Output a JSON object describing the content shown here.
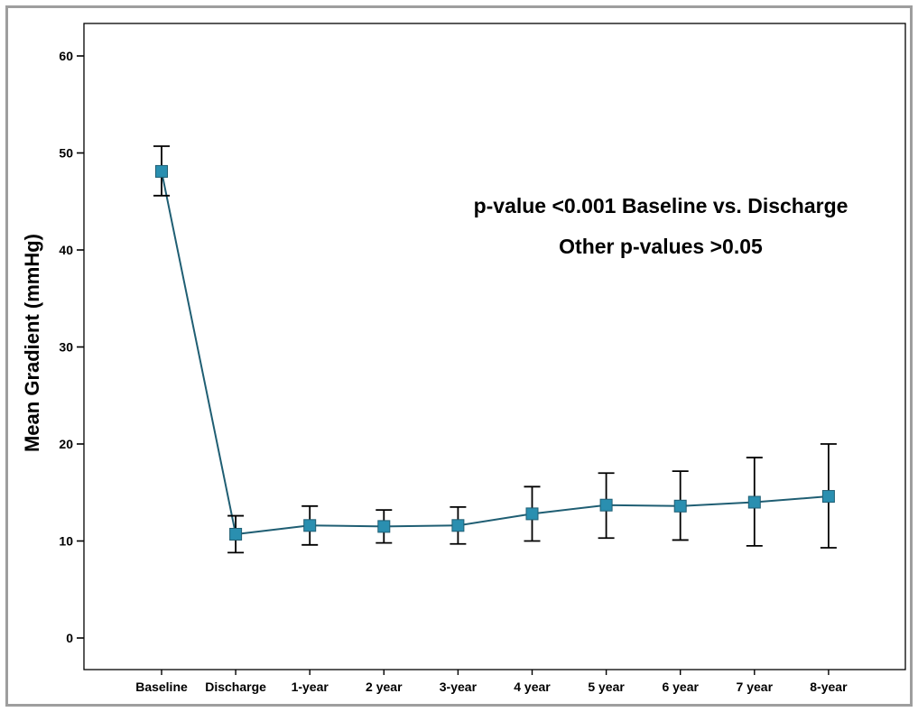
{
  "chart_data": {
    "type": "line",
    "title": "",
    "xlabel": "",
    "ylabel": "Mean Gradient (mmHg)",
    "ylim": [
      0,
      60
    ],
    "yticks": [
      0,
      10,
      20,
      30,
      40,
      50,
      60
    ],
    "grid": false,
    "error_bars": true,
    "categories": [
      "Baseline",
      "Discharge",
      "1-year",
      "2 year",
      "3-year",
      "4 year",
      "5 year",
      "6 year",
      "7 year",
      "8-year"
    ],
    "series": [
      {
        "values": [
          48.1,
          10.7,
          11.6,
          11.5,
          11.6,
          12.8,
          13.7,
          13.6,
          14.0,
          14.6
        ],
        "error_low": [
          45.6,
          8.8,
          9.6,
          9.8,
          9.7,
          10.0,
          10.3,
          10.1,
          9.5,
          9.3
        ],
        "error_high": [
          50.7,
          12.6,
          13.6,
          13.2,
          13.5,
          15.6,
          17.0,
          17.2,
          18.6,
          20.0
        ],
        "color": "#1f5e73",
        "marker_color": "#2a8fb0"
      }
    ],
    "annotations": [
      "p-value <0.001 Baseline vs. Discharge",
      "Other p-values >0.05"
    ]
  }
}
